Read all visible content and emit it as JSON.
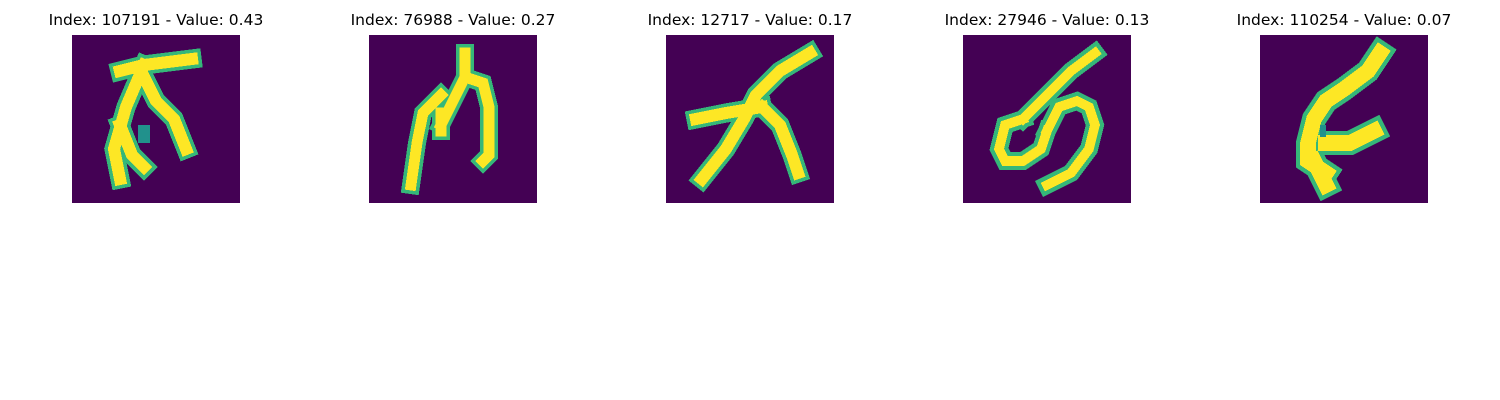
{
  "figure": {
    "panels": [
      {
        "title": "Index: 107191 - Value: 0.43",
        "image_icon": "handwritten-glyph-image"
      },
      {
        "title": "Index: 76988 - Value: 0.27",
        "image_icon": "handwritten-glyph-image"
      },
      {
        "title": "Index: 12717 - Value: 0.17",
        "image_icon": "handwritten-glyph-image"
      },
      {
        "title": "Index: 27946 - Value: 0.13",
        "image_icon": "handwritten-glyph-image"
      },
      {
        "title": "Index: 110254 - Value: 0.07",
        "image_icon": "handwritten-glyph-image"
      }
    ],
    "colors": {
      "background": "#440154",
      "foreground": "#fde725",
      "edge": "#35b779",
      "edge_dark": "#21918c"
    }
  }
}
